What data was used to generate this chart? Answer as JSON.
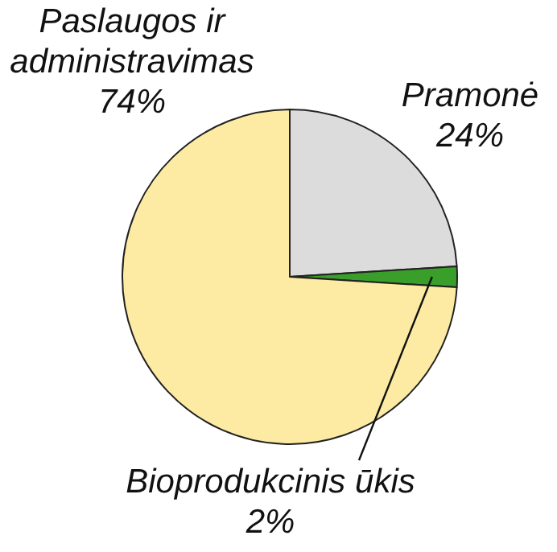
{
  "chart_data": {
    "type": "pie",
    "categories": [
      "Pramonė",
      "Bioprodukcinis ūkis",
      "Paslaugos ir administravimas"
    ],
    "values": [
      24,
      2,
      74
    ],
    "colors": [
      "#dcdcdc",
      "#3a9e2a",
      "#fdeba3"
    ],
    "value_labels": [
      "24%",
      "2%",
      "74%"
    ],
    "legend": false
  }
}
